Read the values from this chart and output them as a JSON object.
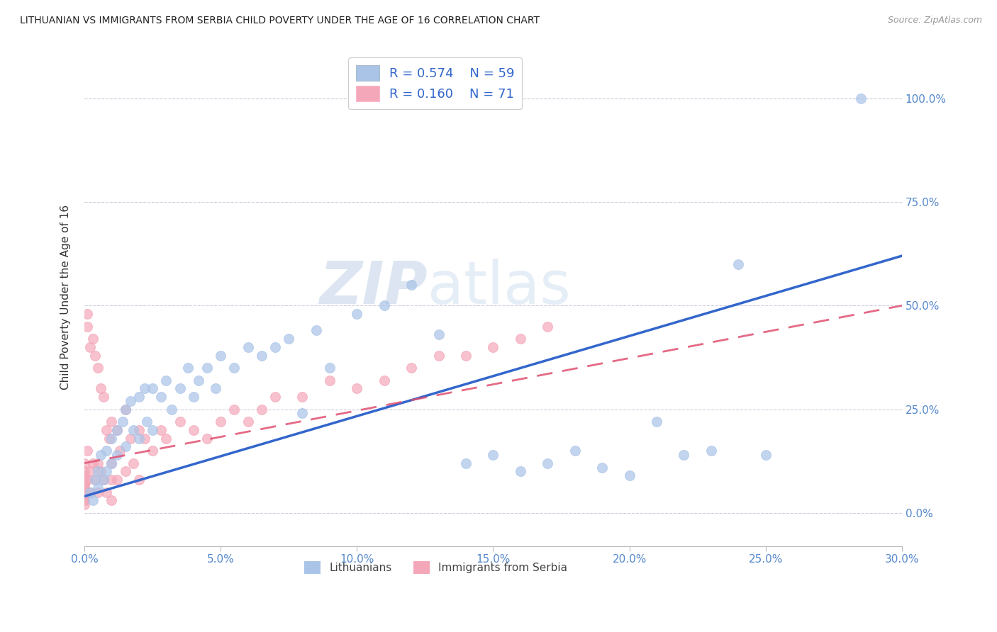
{
  "title": "LITHUANIAN VS IMMIGRANTS FROM SERBIA CHILD POVERTY UNDER THE AGE OF 16 CORRELATION CHART",
  "source": "Source: ZipAtlas.com",
  "xlabel_ticks": [
    "0.0%",
    "5.0%",
    "10.0%",
    "15.0%",
    "20.0%",
    "25.0%",
    "30.0%"
  ],
  "xlabel_vals": [
    0.0,
    5.0,
    10.0,
    15.0,
    20.0,
    25.0,
    30.0
  ],
  "ylabel_ticks": [
    "0.0%",
    "25.0%",
    "50.0%",
    "75.0%",
    "100.0%"
  ],
  "ylabel_vals": [
    0.0,
    25.0,
    50.0,
    75.0,
    100.0
  ],
  "xlim": [
    0.0,
    30.0
  ],
  "ylim": [
    -8.0,
    112.0
  ],
  "legend_blue_R": "0.574",
  "legend_blue_N": "59",
  "legend_pink_R": "0.160",
  "legend_pink_N": "71",
  "blue_color": "#aac4e8",
  "pink_color": "#f4a7b9",
  "blue_line_color": "#3366cc",
  "pink_line_color": "#e05070",
  "ylabel": "Child Poverty Under the Age of 16",
  "watermark_zip": "ZIP",
  "watermark_atlas": "atlas",
  "blue_scatter_x": [
    0.2,
    0.3,
    0.4,
    0.5,
    0.5,
    0.6,
    0.7,
    0.8,
    0.8,
    1.0,
    1.0,
    1.2,
    1.2,
    1.4,
    1.5,
    1.5,
    1.7,
    1.8,
    2.0,
    2.0,
    2.2,
    2.3,
    2.5,
    2.5,
    2.8,
    3.0,
    3.2,
    3.5,
    3.8,
    4.0,
    4.2,
    4.5,
    4.8,
    5.0,
    5.5,
    6.0,
    6.5,
    7.0,
    7.5,
    8.0,
    8.5,
    9.0,
    10.0,
    11.0,
    12.0,
    13.0,
    14.0,
    15.0,
    16.0,
    17.0,
    18.0,
    19.0,
    20.0,
    21.0,
    22.0,
    23.0,
    24.0,
    25.0,
    28.5
  ],
  "blue_scatter_y": [
    5.0,
    3.0,
    8.0,
    10.0,
    6.0,
    14.0,
    8.0,
    15.0,
    10.0,
    18.0,
    12.0,
    20.0,
    14.0,
    22.0,
    25.0,
    16.0,
    27.0,
    20.0,
    28.0,
    18.0,
    30.0,
    22.0,
    30.0,
    20.0,
    28.0,
    32.0,
    25.0,
    30.0,
    35.0,
    28.0,
    32.0,
    35.0,
    30.0,
    38.0,
    35.0,
    40.0,
    38.0,
    40.0,
    42.0,
    24.0,
    44.0,
    35.0,
    48.0,
    50.0,
    55.0,
    43.0,
    12.0,
    14.0,
    10.0,
    12.0,
    15.0,
    11.0,
    9.0,
    22.0,
    14.0,
    15.0,
    60.0,
    14.0,
    100.0
  ],
  "pink_scatter_x": [
    0.0,
    0.0,
    0.0,
    0.0,
    0.0,
    0.0,
    0.0,
    0.0,
    0.0,
    0.0,
    0.0,
    0.0,
    0.0,
    0.0,
    0.0,
    0.1,
    0.1,
    0.1,
    0.1,
    0.2,
    0.2,
    0.2,
    0.3,
    0.3,
    0.4,
    0.4,
    0.5,
    0.5,
    0.5,
    0.6,
    0.6,
    0.7,
    0.7,
    0.8,
    0.8,
    0.9,
    1.0,
    1.0,
    1.0,
    1.0,
    1.2,
    1.2,
    1.3,
    1.5,
    1.5,
    1.7,
    1.8,
    2.0,
    2.0,
    2.2,
    2.5,
    2.8,
    3.0,
    3.5,
    4.0,
    4.5,
    5.0,
    5.5,
    6.0,
    6.5,
    7.0,
    8.0,
    9.0,
    10.0,
    11.0,
    12.0,
    13.0,
    14.0,
    15.0,
    16.0,
    17.0
  ],
  "pink_scatter_y": [
    3.0,
    5.0,
    2.0,
    8.0,
    4.0,
    6.0,
    10.0,
    7.0,
    3.0,
    9.0,
    5.0,
    12.0,
    7.0,
    4.0,
    6.0,
    15.0,
    8.0,
    45.0,
    48.0,
    10.0,
    40.0,
    5.0,
    42.0,
    12.0,
    38.0,
    8.0,
    35.0,
    12.0,
    5.0,
    30.0,
    10.0,
    28.0,
    8.0,
    20.0,
    5.0,
    18.0,
    22.0,
    12.0,
    8.0,
    3.0,
    20.0,
    8.0,
    15.0,
    25.0,
    10.0,
    18.0,
    12.0,
    20.0,
    8.0,
    18.0,
    15.0,
    20.0,
    18.0,
    22.0,
    20.0,
    18.0,
    22.0,
    25.0,
    22.0,
    25.0,
    28.0,
    28.0,
    32.0,
    30.0,
    32.0,
    35.0,
    38.0,
    38.0,
    40.0,
    42.0,
    45.0
  ],
  "blue_reg_x0": 0.0,
  "blue_reg_y0": 4.0,
  "blue_reg_x1": 30.0,
  "blue_reg_y1": 62.0,
  "pink_reg_x0": 0.0,
  "pink_reg_y0": 12.0,
  "pink_reg_x1": 30.0,
  "pink_reg_y1": 50.0
}
